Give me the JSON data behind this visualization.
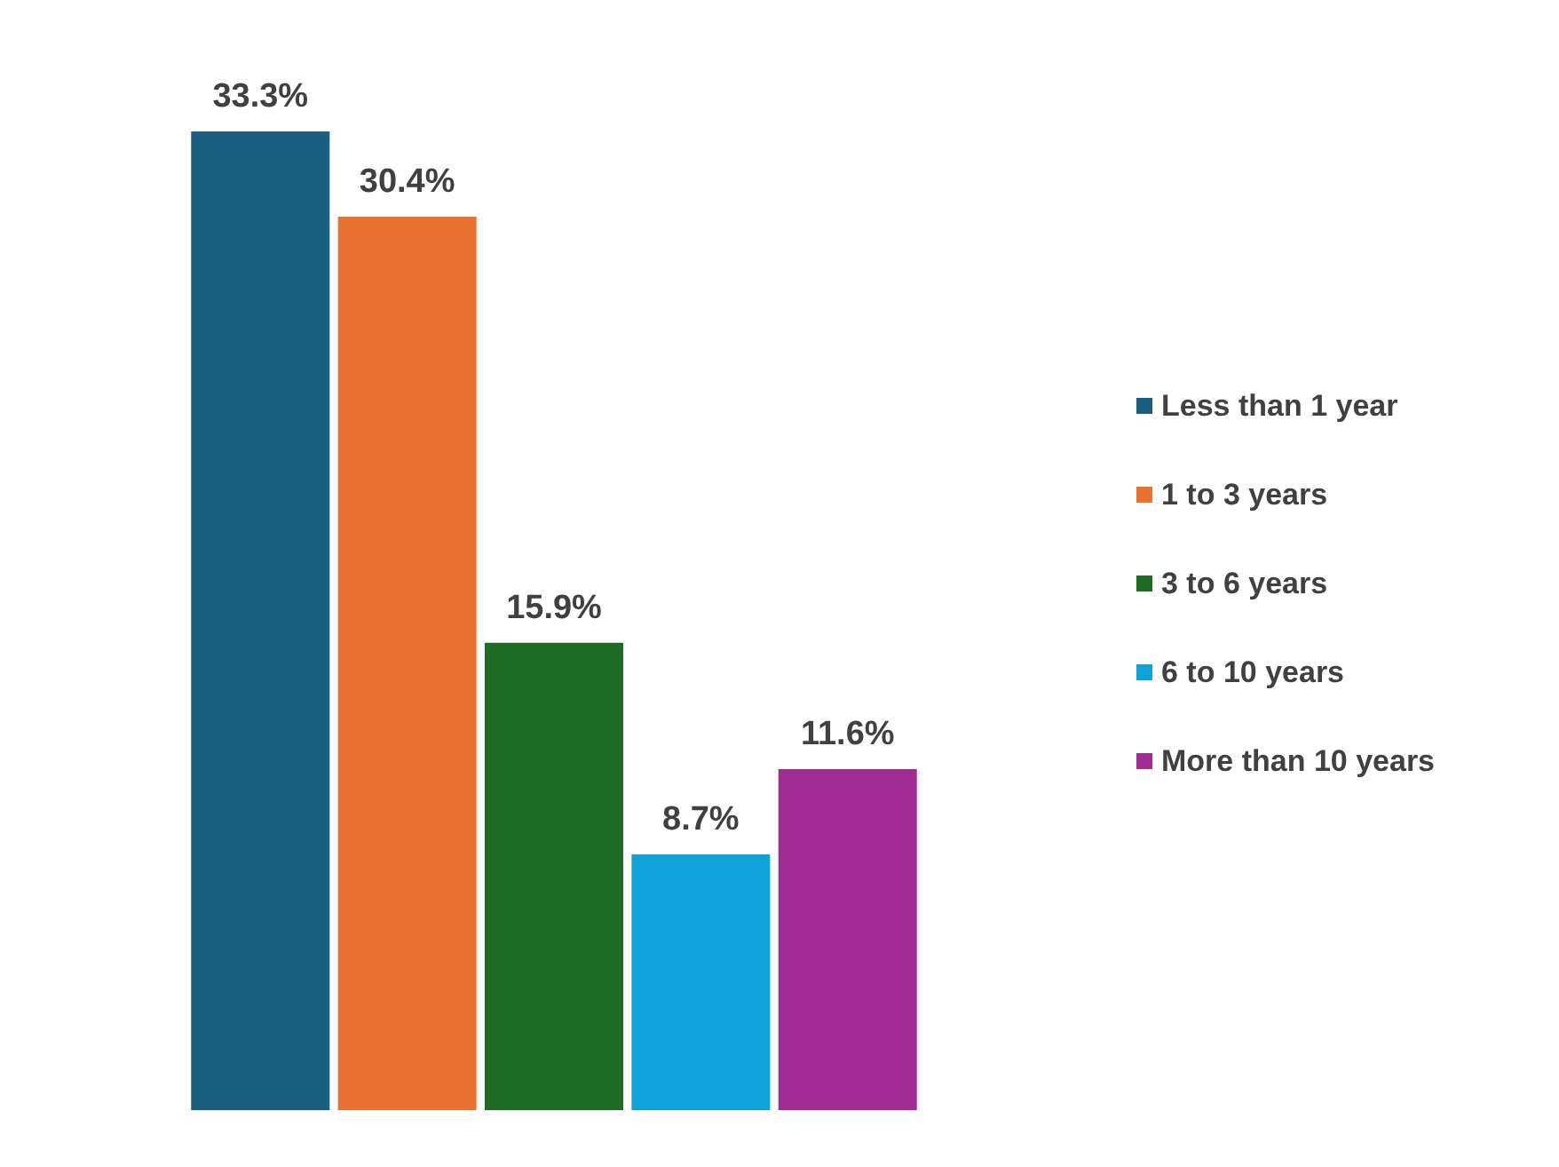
{
  "chart_data": {
    "type": "bar",
    "categories": [
      null
    ],
    "series": [
      {
        "name": "Less than 1 year",
        "color": "#1a5e80",
        "values": [
          33.3
        ],
        "value_labels": [
          "33.3%"
        ]
      },
      {
        "name": "1 to 3 years",
        "color": "#e97132",
        "values": [
          30.4
        ],
        "value_labels": [
          "30.4%"
        ]
      },
      {
        "name": "3 to 6 years",
        "color": "#1e6b24",
        "values": [
          15.9
        ],
        "value_labels": [
          "15.9%"
        ]
      },
      {
        "name": "6 to 10 years",
        "color": "#10a1d8",
        "values": [
          8.7
        ],
        "value_labels": [
          "8.7%"
        ]
      },
      {
        "name": "More than 10 years",
        "color": "#a02b93",
        "values": [
          11.6
        ],
        "value_labels": [
          "11.6%"
        ]
      }
    ],
    "legend": "right"
  }
}
